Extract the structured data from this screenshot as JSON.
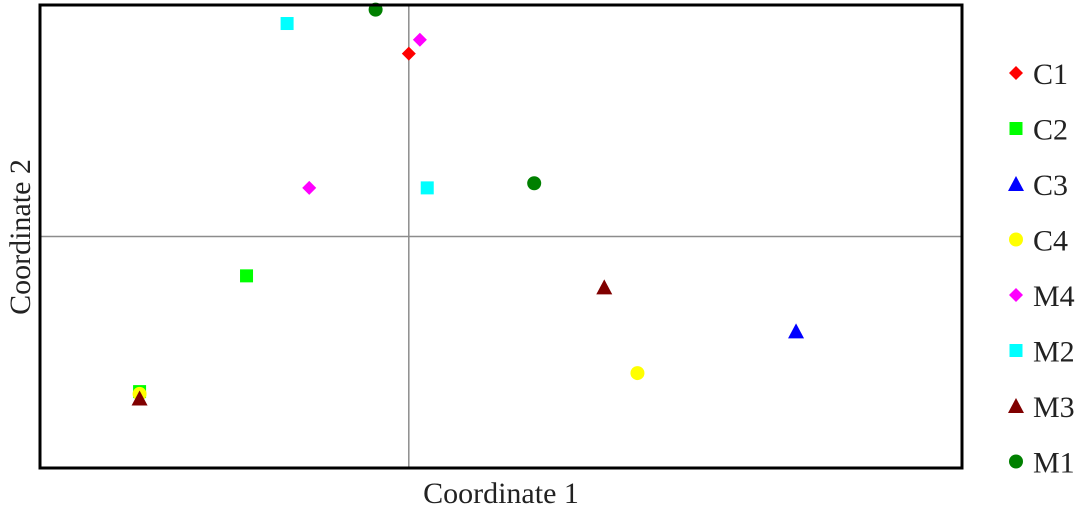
{
  "chart_data": {
    "type": "scatter",
    "title": "",
    "xlabel": "Coordinate 1",
    "ylabel": "Coordinate 2",
    "xlim": [
      -1.0,
      1.5
    ],
    "ylim": [
      -1.0,
      1.0
    ],
    "grid": false,
    "reference_lines": {
      "x": 0,
      "y": 0
    },
    "legend_position": "right",
    "series": [
      {
        "name": "C1",
        "marker": "diamond",
        "color": "#ff0000",
        "points": [
          [
            0.0,
            0.79
          ]
        ]
      },
      {
        "name": "C2",
        "marker": "square",
        "color": "#00ff00",
        "points": [
          [
            -0.44,
            -0.17
          ],
          [
            -0.73,
            -0.67
          ]
        ]
      },
      {
        "name": "C3",
        "marker": "triangle",
        "color": "#0000ff",
        "points": [
          [
            1.05,
            -0.41
          ]
        ]
      },
      {
        "name": "C4",
        "marker": "circle",
        "color": "#ffff00",
        "points": [
          [
            0.62,
            -0.59
          ],
          [
            -0.73,
            -0.68
          ]
        ]
      },
      {
        "name": "M4",
        "marker": "diamond",
        "color": "#ff00ff",
        "points": [
          [
            0.03,
            0.85
          ],
          [
            -0.27,
            0.21
          ]
        ]
      },
      {
        "name": "M2",
        "marker": "square",
        "color": "#00ffff",
        "points": [
          [
            -0.33,
            0.92
          ],
          [
            0.05,
            0.21
          ]
        ]
      },
      {
        "name": "M3",
        "marker": "triangle",
        "color": "#800000",
        "points": [
          [
            0.53,
            -0.22
          ],
          [
            -0.73,
            -0.7
          ]
        ]
      },
      {
        "name": "M1",
        "marker": "circle",
        "color": "#008000",
        "points": [
          [
            -0.09,
            0.98
          ],
          [
            0.34,
            0.23
          ]
        ]
      }
    ]
  }
}
